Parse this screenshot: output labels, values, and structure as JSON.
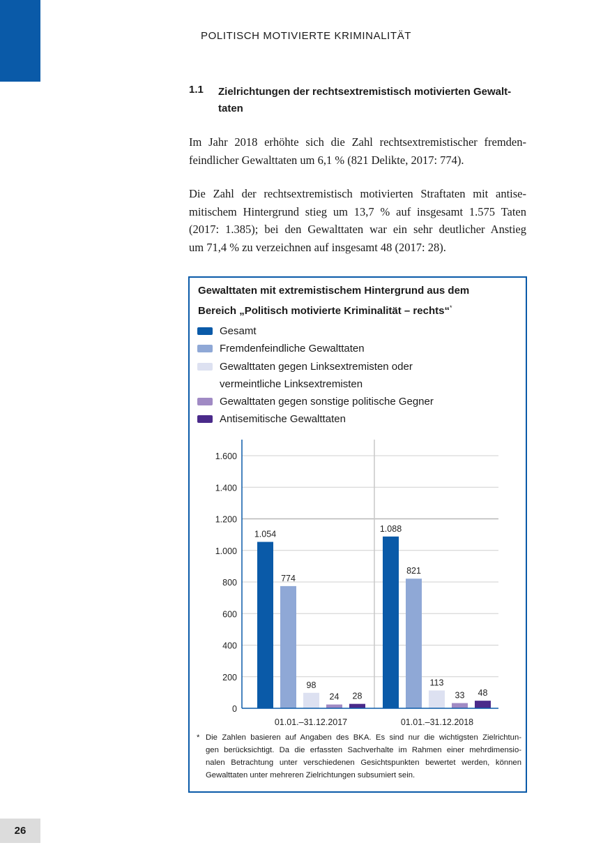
{
  "header": {
    "running_head": "POLITISCH MOTIVIERTE KRIMINALITÄT"
  },
  "section": {
    "number": "1.1",
    "title": "Zielrichtungen der rechtsextremistisch motivierten Gewalt-taten",
    "title_lines": [
      "Zielrichtungen der rechtsextremistisch motivierten Gewalt-",
      "taten"
    ]
  },
  "paragraphs": [
    {
      "lines": [
        "Im Jahr 2018 erhöhte sich die Zahl rechtsextremistischer fremden-",
        "feindlicher Gewalttaten um 6,1 % (821 Delikte, 2017: 774)."
      ]
    },
    {
      "lines": [
        "Die Zahl der rechtsextremistisch motivierten Straftaten mit antise-",
        "mitischem Hintergrund stieg um 13,7 % auf insgesamt 1.575 Taten",
        "(2017: 1.385); bei den Gewalttaten war ein sehr deutlicher Anstieg",
        "um 71,4 % zu verzeichnen auf insgesamt 48 (2017: 28)."
      ]
    }
  ],
  "chart_box": {
    "title_lines": [
      "Gewalttaten mit extremistischem Hintergrund aus dem",
      "Bereich „Politisch motivierte Kriminalität – rechts“"
    ],
    "title_marker": "*",
    "footnote_marker": "*",
    "footnote_lines": [
      "Die Zahlen basieren auf Angaben des BKA. Es sind nur die wichtigsten Zielrichtun-",
      "gen berücksichtigt. Da die erfassten Sachverhalte im Rahmen einer mehrdimensio-",
      "nalen Betrachtung unter verschiedenen Gesichtspunkten bewertet werden, können",
      "Gewalttaten unter mehreren Zielrichtungen subsumiert sein."
    ]
  },
  "chart_data": {
    "type": "bar",
    "title": "Gewalttaten mit extremistischem Hintergrund aus dem Bereich „Politisch motivierte Kriminalität – rechts“*",
    "categories": [
      "01.01.–31.12.2017",
      "01.01.–31.12.2018"
    ],
    "series": [
      {
        "name": "Gesamt",
        "color": "#0a5aa8",
        "values": [
          1054,
          1088
        ],
        "labels": [
          "1.054",
          "1.088"
        ]
      },
      {
        "name": "Fremdenfeindliche Gewalttaten",
        "color": "#8fa8d6",
        "values": [
          774,
          821
        ],
        "labels": [
          "774",
          "821"
        ]
      },
      {
        "name": "Gewalttaten gegen Linksextremisten oder vermeintliche Linksextremisten",
        "name_lines": [
          "Gewalttaten gegen Linksextremisten oder",
          "vermeintliche Linksextremisten"
        ],
        "color": "#dde1f1",
        "values": [
          98,
          113
        ],
        "labels": [
          "98",
          "113"
        ]
      },
      {
        "name": "Gewalttaten gegen sonstige politische Gegner",
        "color": "#a08ac4",
        "values": [
          24,
          33
        ],
        "labels": [
          "24",
          "33"
        ]
      },
      {
        "name": "Antisemitische Gewalttaten",
        "color": "#4a2a8a",
        "values": [
          28,
          48
        ],
        "labels": [
          "28",
          "48"
        ]
      }
    ],
    "yticks": [
      0,
      200,
      400,
      600,
      800,
      1000,
      1200,
      1400,
      1600
    ],
    "ytick_labels": [
      "0",
      "200",
      "400",
      "600",
      "800",
      "1.000",
      "1.200",
      "1.400",
      "1.600"
    ],
    "ylim": [
      0,
      1700
    ],
    "xlabel": "",
    "ylabel": "",
    "grid": true,
    "legend": "top"
  },
  "footer": {
    "page_number": "26"
  }
}
